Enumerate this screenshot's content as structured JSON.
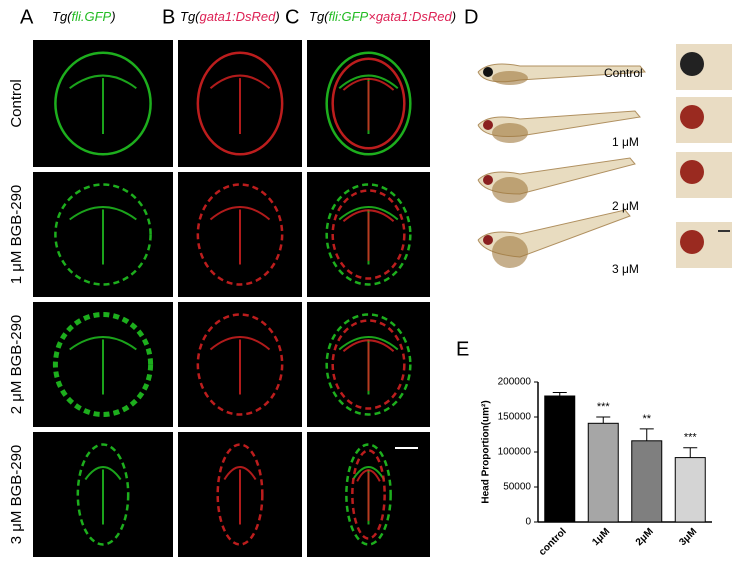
{
  "panels": {
    "letters": [
      "A",
      "B",
      "C",
      "D",
      "E"
    ],
    "headers": [
      [
        "Tg(",
        "fli.GFP",
        ")"
      ],
      [
        "Tg(",
        "gata1:DsRed",
        ")"
      ],
      [
        "Tg(",
        "fli:GFP",
        "×",
        "gata1:DsRed",
        ")"
      ]
    ],
    "row_labels": [
      "Control",
      "1 μM BGB-290",
      "2 μM BGB-290",
      "3 μM BGB-290"
    ],
    "fish_labels": [
      "Control",
      "1 μM",
      "2 μM",
      "3 μM"
    ]
  },
  "chart_data": {
    "type": "bar",
    "y_label": "Head Proportion(um²)",
    "categories": [
      "control",
      "1μM",
      "2μM",
      "3μM"
    ],
    "values": [
      180000,
      141000,
      116000,
      92000
    ],
    "errors": [
      5000,
      9000,
      17000,
      14000
    ],
    "significance": [
      null,
      "***",
      "**",
      "***"
    ],
    "colors": [
      "#000000",
      "#a6a6a6",
      "#7f7f7f",
      "#d4d4d4"
    ],
    "ylim": [
      0,
      200000
    ],
    "yticks": [
      0,
      50000,
      100000,
      150000,
      200000
    ]
  }
}
